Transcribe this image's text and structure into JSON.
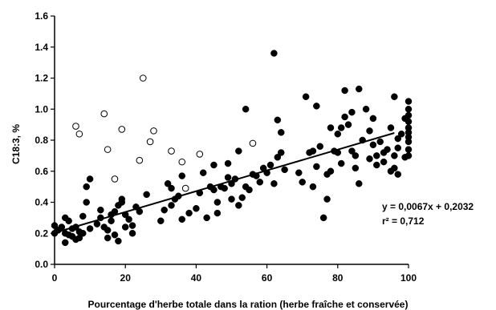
{
  "chart_data": {
    "type": "scatter",
    "title": "",
    "xlabel": "Pourcentage d'herbe totale dans la ration (herbe fraîche et conservée)",
    "ylabel": "C18:3, %",
    "xlim": [
      0,
      100
    ],
    "ylim": [
      0,
      1.6
    ],
    "x_ticks": [
      0,
      20,
      40,
      60,
      80,
      100
    ],
    "x_tick_labels": [
      "0",
      "20",
      "40",
      "60",
      "80",
      "100"
    ],
    "y_ticks": [
      0,
      0.2,
      0.4,
      0.6,
      0.8,
      1.0,
      1.2,
      1.4,
      1.6
    ],
    "y_tick_labels": [
      "0.0",
      "0.2",
      "0.4",
      "0.6",
      "0.8",
      "1.0",
      "1.2",
      "1.4",
      "1.6"
    ],
    "grid": false,
    "colors": {
      "filled_marker": "#000000",
      "open_marker_stroke": "#000000",
      "open_marker_fill": "#ffffff",
      "trendline": "#000000",
      "axis": "#000000"
    },
    "series": [
      {
        "marker": "filled-circle",
        "points": [
          [
            0,
            0.25
          ],
          [
            0,
            0.2
          ],
          [
            1,
            0.22
          ],
          [
            2,
            0.24
          ],
          [
            3,
            0.3
          ],
          [
            3,
            0.2
          ],
          [
            3,
            0.14
          ],
          [
            4,
            0.28
          ],
          [
            4,
            0.19
          ],
          [
            5,
            0.23
          ],
          [
            5,
            0.18
          ],
          [
            6,
            0.16
          ],
          [
            6,
            0.24
          ],
          [
            7,
            0.17
          ],
          [
            7,
            0.21
          ],
          [
            8,
            0.31
          ],
          [
            8,
            0.2
          ],
          [
            9,
            0.5
          ],
          [
            9,
            0.4
          ],
          [
            10,
            0.55
          ],
          [
            10,
            0.23
          ],
          [
            12,
            0.26
          ],
          [
            13,
            0.35
          ],
          [
            13,
            0.3
          ],
          [
            14,
            0.24
          ],
          [
            15,
            0.22
          ],
          [
            15,
            0.17
          ],
          [
            16,
            0.28
          ],
          [
            16,
            0.32
          ],
          [
            17,
            0.34
          ],
          [
            17,
            0.19
          ],
          [
            18,
            0.38
          ],
          [
            18,
            0.15
          ],
          [
            19,
            0.4
          ],
          [
            19,
            0.42
          ],
          [
            20,
            0.24
          ],
          [
            20,
            0.32
          ],
          [
            21,
            0.29
          ],
          [
            22,
            0.25
          ],
          [
            22,
            0.2
          ],
          [
            23,
            0.37
          ],
          [
            24,
            0.34
          ],
          [
            26,
            0.45
          ],
          [
            30,
            0.28
          ],
          [
            31,
            0.35
          ],
          [
            32,
            0.52
          ],
          [
            33,
            0.49
          ],
          [
            33,
            0.38
          ],
          [
            34,
            0.42
          ],
          [
            35,
            0.44
          ],
          [
            36,
            0.57
          ],
          [
            36,
            0.29
          ],
          [
            38,
            0.33
          ],
          [
            40,
            0.36
          ],
          [
            41,
            0.46
          ],
          [
            42,
            0.59
          ],
          [
            43,
            0.3
          ],
          [
            44,
            0.5
          ],
          [
            45,
            0.64
          ],
          [
            45,
            0.48
          ],
          [
            46,
            0.33
          ],
          [
            46,
            0.4
          ],
          [
            47,
            0.5
          ],
          [
            48,
            0.49
          ],
          [
            49,
            0.65
          ],
          [
            49,
            0.56
          ],
          [
            50,
            0.52
          ],
          [
            50,
            0.42
          ],
          [
            51,
            0.55
          ],
          [
            52,
            0.73
          ],
          [
            52,
            0.38
          ],
          [
            53,
            0.43
          ],
          [
            54,
            0.5
          ],
          [
            54,
            1.0
          ],
          [
            55,
            0.48
          ],
          [
            56,
            0.58
          ],
          [
            57,
            0.57
          ],
          [
            58,
            0.53
          ],
          [
            59,
            0.62
          ],
          [
            60,
            0.59
          ],
          [
            61,
            0.64
          ],
          [
            62,
            1.36
          ],
          [
            62,
            0.52
          ],
          [
            63,
            0.93
          ],
          [
            63,
            0.69
          ],
          [
            64,
            0.85
          ],
          [
            64,
            0.72
          ],
          [
            65,
            0.61
          ],
          [
            69,
            0.59
          ],
          [
            70,
            0.53
          ],
          [
            71,
            1.08
          ],
          [
            72,
            0.72
          ],
          [
            73,
            0.73
          ],
          [
            73,
            0.5
          ],
          [
            74,
            1.02
          ],
          [
            74,
            0.63
          ],
          [
            75,
            0.76
          ],
          [
            76,
            0.3
          ],
          [
            77,
            0.42
          ],
          [
            77,
            0.58
          ],
          [
            78,
            0.6
          ],
          [
            78,
            0.88
          ],
          [
            79,
            0.73
          ],
          [
            80,
            0.72
          ],
          [
            80,
            0.84
          ],
          [
            81,
            0.65
          ],
          [
            81,
            0.88
          ],
          [
            82,
            1.12
          ],
          [
            82,
            0.95
          ],
          [
            83,
            0.9
          ],
          [
            84,
            0.98
          ],
          [
            84,
            0.73
          ],
          [
            85,
            0.62
          ],
          [
            85,
            0.7
          ],
          [
            86,
            1.13
          ],
          [
            86,
            0.52
          ],
          [
            87,
            0.8
          ],
          [
            88,
            1.0
          ],
          [
            89,
            0.86
          ],
          [
            89,
            0.68
          ],
          [
            90,
            0.94
          ],
          [
            90,
            0.77
          ],
          [
            91,
            0.7
          ],
          [
            91,
            0.64
          ],
          [
            92,
            0.79
          ],
          [
            93,
            0.72
          ],
          [
            93,
            0.66
          ],
          [
            94,
            0.74
          ],
          [
            95,
            0.88
          ],
          [
            95,
            0.6
          ],
          [
            96,
            0.62
          ],
          [
            96,
            1.08
          ],
          [
            96,
            0.7
          ],
          [
            97,
            0.81
          ],
          [
            97,
            0.75
          ],
          [
            97,
            0.58
          ],
          [
            98,
            0.84
          ],
          [
            99,
            0.69
          ],
          [
            99,
            0.94
          ],
          [
            100,
            1.05
          ],
          [
            100,
            1.0
          ],
          [
            100,
            0.96
          ],
          [
            100,
            0.92
          ],
          [
            100,
            0.88
          ],
          [
            100,
            0.85
          ],
          [
            100,
            0.82
          ],
          [
            100,
            0.79
          ],
          [
            100,
            0.74
          ],
          [
            100,
            0.7
          ]
        ]
      },
      {
        "marker": "open-circle",
        "points": [
          [
            6,
            0.89
          ],
          [
            7,
            0.84
          ],
          [
            14,
            0.97
          ],
          [
            15,
            0.74
          ],
          [
            17,
            0.55
          ],
          [
            19,
            0.87
          ],
          [
            24,
            0.67
          ],
          [
            25,
            1.2
          ],
          [
            27,
            0.79
          ],
          [
            28,
            0.86
          ],
          [
            33,
            0.73
          ],
          [
            36,
            0.66
          ],
          [
            37,
            0.49
          ],
          [
            41,
            0.71
          ],
          [
            56,
            0.78
          ]
        ]
      }
    ],
    "trendline": {
      "slope": 0.0067,
      "intercept": 0.2032,
      "x_range": [
        0,
        96
      ]
    },
    "annotations": {
      "equation": "y = 0,0067x + 0,2032",
      "r_squared": "r² = 0,712"
    }
  }
}
